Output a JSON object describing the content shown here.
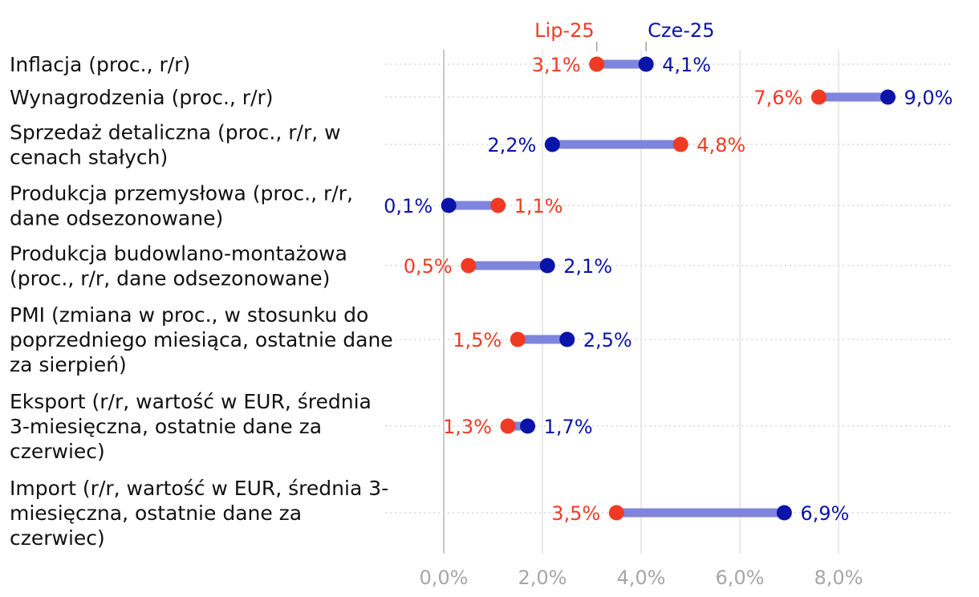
{
  "chart_data": {
    "type": "dumbbell",
    "title": "",
    "xlabel": "",
    "ylabel": "",
    "xlim": [
      -1.2,
      10.2
    ],
    "x_ticks": [
      0,
      2,
      4,
      6,
      8
    ],
    "x_tick_labels": [
      "0,0%",
      "2,0%",
      "4,0%",
      "6,0%",
      "8,0%"
    ],
    "grid": true,
    "legend_position": "top",
    "series": [
      {
        "name": "Lip-25",
        "color": "#f03a24"
      },
      {
        "name": "Cze-25",
        "color": "#0a14a8"
      }
    ],
    "connector_color": "#7f85dc",
    "categories": [
      {
        "lines": [
          "Inflacja (proc., r/r)"
        ],
        "lip": 3.1,
        "cze": 4.1,
        "lip_label": "3,1%",
        "cze_label": "4,1%"
      },
      {
        "lines": [
          "Wynagrodzenia (proc., r/r)"
        ],
        "lip": 7.6,
        "cze": 9.0,
        "lip_label": "7,6%",
        "cze_label": "9,0%"
      },
      {
        "lines": [
          "Sprzedaż detaliczna (proc., r/r, w",
          "cenach stałych)"
        ],
        "lip": 4.8,
        "cze": 2.2,
        "lip_label": "4,8%",
        "cze_label": "2,2%"
      },
      {
        "lines": [
          "Produkcja przemysłowa (proc., r/r,",
          "dane odsezonowane)"
        ],
        "lip": 1.1,
        "cze": 0.1,
        "lip_label": "1,1%",
        "cze_label": "0,1%"
      },
      {
        "lines": [
          "Produkcja budowlano-montażowa",
          "(proc., r/r, dane odsezonowane)"
        ],
        "lip": 0.5,
        "cze": 2.1,
        "lip_label": "0,5%",
        "cze_label": "2,1%"
      },
      {
        "lines": [
          "PMI (zmiana w proc., w stosunku do",
          "poprzedniego miesiąca, ostatnie dane",
          "za sierpień)"
        ],
        "lip": 1.5,
        "cze": 2.5,
        "lip_label": "1,5%",
        "cze_label": "2,5%"
      },
      {
        "lines": [
          "Eksport (r/r, wartość w EUR, średnia",
          "3-miesięczna, ostatnie dane za",
          "czerwiec)"
        ],
        "lip": 1.3,
        "cze": 1.7,
        "lip_label": "1,3%",
        "cze_label": "1,7%"
      },
      {
        "lines": [
          "Import (r/r, wartość w EUR, średnia 3-",
          "miesięczna, ostatnie dane za",
          "czerwiec)"
        ],
        "lip": 3.5,
        "cze": 6.9,
        "lip_label": "3,5%",
        "cze_label": "6,9%"
      }
    ]
  }
}
